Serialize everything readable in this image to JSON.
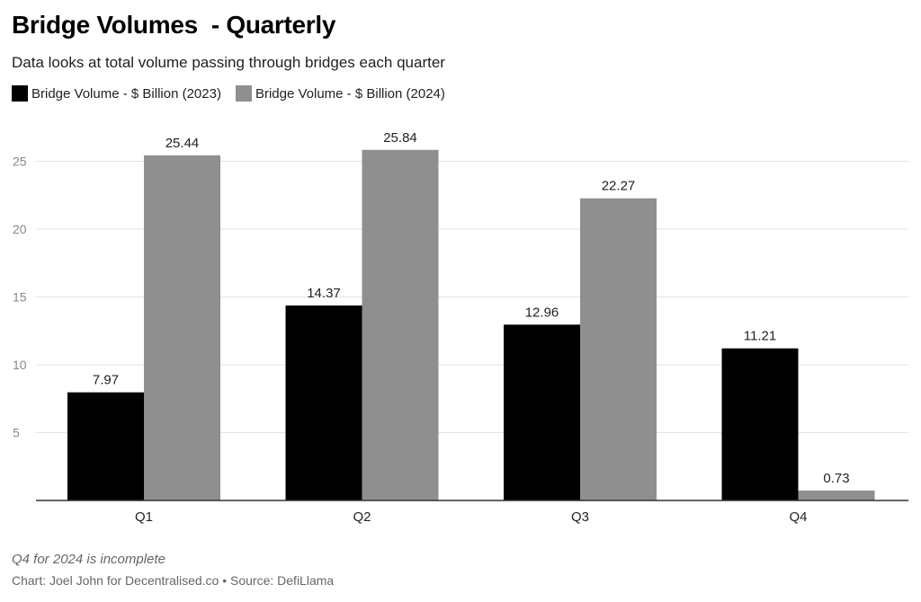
{
  "header": {
    "title": "Bridge Volumes  - Quarterly",
    "subtitle": "Data looks at total volume passing through bridges each quarter"
  },
  "legend": {
    "items": [
      {
        "label": "Bridge Volume - $ Billion (2023)",
        "color": "#000000"
      },
      {
        "label": "Bridge Volume - $ Billion (2024)",
        "color": "#8f8f8f"
      }
    ]
  },
  "footer": {
    "note": "Q4 for 2024 is incomplete",
    "credit": "Chart: Joel John for Decentralised.co • Source: DefiLlama"
  },
  "chart_data": {
    "type": "bar",
    "title": "Bridge Volumes  - Quarterly",
    "subtitle": "Data looks at total volume passing through bridges each quarter",
    "categories": [
      "Q1",
      "Q2",
      "Q3",
      "Q4"
    ],
    "series": [
      {
        "name": "Bridge Volume - $ Billion (2023)",
        "color": "#000000",
        "values": [
          7.97,
          14.37,
          12.96,
          11.21
        ],
        "labels": [
          "7.97",
          "14.37",
          "12.96",
          "11.21"
        ]
      },
      {
        "name": "Bridge Volume - $ Billion (2024)",
        "color": "#8f8f8f",
        "values": [
          25.44,
          25.84,
          22.27,
          0.73
        ],
        "labels": [
          "25.44",
          "25.84",
          "22.27",
          "0.73"
        ]
      }
    ],
    "ylim": [
      0,
      25
    ],
    "yticks": [
      5,
      10,
      15,
      20,
      25
    ],
    "grid": true,
    "legend_position": "top-left",
    "xlabel": "",
    "ylabel": ""
  }
}
